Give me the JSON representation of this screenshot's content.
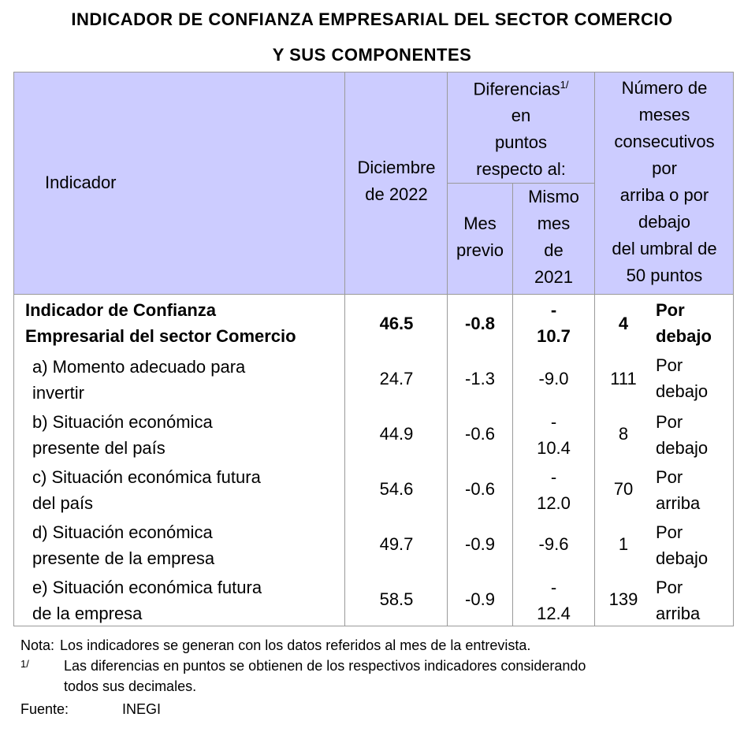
{
  "title": {
    "line1": "INDICADOR DE CONFIANZA EMPRESARIAL DEL SECTOR COMERCIO",
    "line2": "Y SUS COMPONENTES"
  },
  "header": {
    "indicador": "Indicador",
    "diciembre_l1": "Diciembre",
    "diciembre_l2": "de 2022",
    "dif_l1": "Diferencias",
    "dif_sup": "1/",
    "dif_l2": "en",
    "dif_l3": "puntos",
    "dif_l4": "respecto al:",
    "mes_l1": "Mes",
    "mes_l2": "previo",
    "mismo_l1": "Mismo",
    "mismo_l2": "mes",
    "mismo_l3": "de",
    "mismo_l4": "2021",
    "num_l1": "Número de",
    "num_l2": "meses",
    "num_l3": "consecutivos",
    "num_l4": "por",
    "num_l5": "arriba o por",
    "num_l6": "debajo",
    "num_l7": "del umbral de",
    "num_l8": "50 puntos"
  },
  "rows": [
    {
      "l1": "Indicador de Confianza",
      "l2": "Empresarial del sector Comercio",
      "dic": "46.5",
      "mes": "-0.8",
      "mismo_a": "-",
      "mismo_b": "10.7",
      "num": "4",
      "dir_a": "Por",
      "dir_b": "debajo"
    },
    {
      "l1": "a)  Momento adecuado para",
      "l2": "invertir",
      "dic": "24.7",
      "mes": "-1.3",
      "mismo_a": "",
      "mismo_b": "-9.0",
      "num": "111",
      "dir_a": "Por",
      "dir_b": "debajo"
    },
    {
      "l1": "b)  Situación económica",
      "l2": "presente del país",
      "dic": "44.9",
      "mes": "-0.6",
      "mismo_a": "-",
      "mismo_b": "10.4",
      "num": "8",
      "dir_a": "Por",
      "dir_b": "debajo"
    },
    {
      "l1": "c)  Situación económica futura",
      "l2": "del país",
      "dic": "54.6",
      "mes": "-0.6",
      "mismo_a": "-",
      "mismo_b": "12.0",
      "num": "70",
      "dir_a": "Por",
      "dir_b": "arriba"
    },
    {
      "l1": "d)  Situación económica",
      "l2": "presente de la empresa",
      "dic": "49.7",
      "mes": "-0.9",
      "mismo_a": "",
      "mismo_b": "-9.6",
      "num": "1",
      "dir_a": "Por",
      "dir_b": "debajo"
    },
    {
      "l1": "e)  Situación económica futura",
      "l2": "de la empresa",
      "dic": "58.5",
      "mes": "-0.9",
      "mismo_a": "-",
      "mismo_b": "12.4",
      "num": "139",
      "dir_a": "Por",
      "dir_b": "arriba"
    }
  ],
  "notes": {
    "nota_label": "Nota:",
    "nota_text": "Los indicadores se generan con los datos referidos al mes de la entrevista.",
    "sup_label": "1/",
    "sup_text_l1": "Las diferencias en puntos se obtienen de los respectivos indicadores considerando",
    "sup_text_l2": "todos sus decimales.",
    "fuente_label": "Fuente:",
    "fuente_text": "INEGI"
  }
}
